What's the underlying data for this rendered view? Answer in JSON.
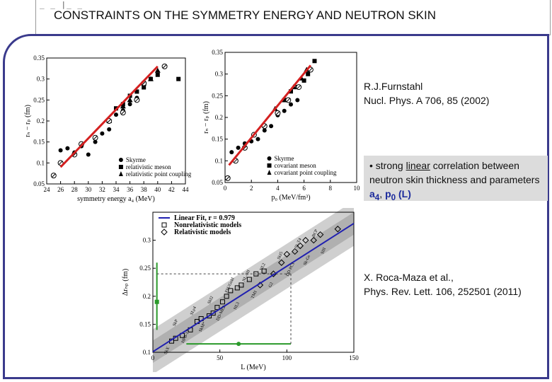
{
  "slide": {
    "title": "CONSTRAINTS ON THE SYMMETRY ENERGY AND NEUTRON SKIN",
    "corner_marks": "_ _ |_ _",
    "citation1": {
      "line1": "R.J.Furnstahl",
      "line2": "Nucl. Phys. A 706, 85 (2002)"
    },
    "note": {
      "bullet": "•",
      "pre": "strong ",
      "underlined": "linear",
      "post": " correlation between neutron skin thickness and parameters ",
      "a4": "a",
      "a4_sub": "4",
      "sep": ", ",
      "p0": "p",
      "p0_sub": "0",
      "L": " (L)"
    },
    "citation2": {
      "line1": "X. Roca-Maza et al.,",
      "line2": "Phys. Rev. Lett. 106, 252501 (2011)"
    }
  },
  "chart_data": [
    {
      "type": "scatter",
      "xlabel": "symmetry energy a₄ (MeV)",
      "ylabel": "rₙ − rₚ (fm)",
      "xlim": [
        24,
        44
      ],
      "ylim": [
        0.05,
        0.35
      ],
      "xticks": [
        "24",
        "26",
        "28",
        "30",
        "32",
        "34",
        "36",
        "38",
        "40",
        "42",
        "44"
      ],
      "yticks": [
        "0.05",
        "0.1",
        "0.15",
        "0.2",
        "0.25",
        "0.3",
        "0.35"
      ],
      "legend": [
        "Skyrme",
        "relativistic meson",
        "relativistic point coupling"
      ],
      "legend_position": "bottom-right",
      "fit_line": [
        [
          26,
          0.09
        ],
        [
          40,
          0.33
        ]
      ],
      "series": [
        {
          "name": "Skyrme",
          "marker": "circle",
          "points": [
            [
              26,
              0.13
            ],
            [
              27,
              0.135
            ],
            [
              28,
              0.125
            ],
            [
              29,
              0.14
            ],
            [
              30,
              0.12
            ],
            [
              31,
              0.15
            ],
            [
              32,
              0.17
            ],
            [
              33,
              0.18
            ],
            [
              34,
              0.215
            ],
            [
              35,
              0.225
            ],
            [
              36,
              0.24
            ],
            [
              37,
              0.255
            ]
          ]
        },
        {
          "name": "relativistic meson",
          "marker": "square",
          "points": [
            [
              34,
              0.23
            ],
            [
              35,
              0.24
            ],
            [
              36,
              0.26
            ],
            [
              37,
              0.27
            ],
            [
              38,
              0.28
            ],
            [
              39,
              0.3
            ],
            [
              40,
              0.31
            ],
            [
              43,
              0.3
            ]
          ]
        },
        {
          "name": "relativistic point coupling",
          "marker": "triangle",
          "points": [
            [
              33,
              0.2
            ],
            [
              35,
              0.235
            ],
            [
              36,
              0.25
            ],
            [
              38,
              0.29
            ],
            [
              39,
              0.3
            ],
            [
              40,
              0.32
            ]
          ]
        },
        {
          "name": "",
          "marker": "hatched",
          "points": [
            [
              25,
              0.07
            ],
            [
              26,
              0.1
            ],
            [
              28,
              0.12
            ],
            [
              29,
              0.145
            ],
            [
              31,
              0.16
            ],
            [
              33,
              0.2
            ],
            [
              35,
              0.22
            ],
            [
              37,
              0.25
            ],
            [
              38,
              0.29
            ],
            [
              41,
              0.33
            ]
          ]
        }
      ]
    },
    {
      "type": "scatter",
      "xlabel": "p₀ (MeV/fm³)",
      "ylabel": "rₙ − rₚ (fm)",
      "xlim": [
        0,
        10
      ],
      "ylim": [
        0.05,
        0.35
      ],
      "xticks": [
        "0",
        "2",
        "4",
        "6",
        "8",
        "10"
      ],
      "yticks": [
        "0.05",
        "0.1",
        "0.15",
        "0.2",
        "0.25",
        "0.3",
        "0.35"
      ],
      "legend": [
        "Skyrme",
        "covariant meson",
        "covariant point coupling"
      ],
      "legend_position": "bottom-right",
      "fit_line": [
        [
          0.3,
          0.09
        ],
        [
          6.5,
          0.32
        ]
      ],
      "series": [
        {
          "name": "Skyrme",
          "marker": "circle",
          "points": [
            [
              0.5,
              0.12
            ],
            [
              1,
              0.13
            ],
            [
              1.5,
              0.14
            ],
            [
              2,
              0.145
            ],
            [
              2.5,
              0.15
            ],
            [
              3,
              0.17
            ],
            [
              3.5,
              0.18
            ],
            [
              4,
              0.205
            ],
            [
              4.5,
              0.215
            ],
            [
              5,
              0.23
            ],
            [
              5.5,
              0.24
            ]
          ]
        },
        {
          "name": "covariant meson",
          "marker": "square",
          "points": [
            [
              4.5,
              0.24
            ],
            [
              5,
              0.26
            ],
            [
              5.5,
              0.27
            ],
            [
              6,
              0.285
            ],
            [
              6.3,
              0.3
            ],
            [
              6.8,
              0.33
            ]
          ]
        },
        {
          "name": "covariant point coupling",
          "marker": "triangle",
          "points": [
            [
              3.8,
              0.22
            ],
            [
              4.5,
              0.24
            ],
            [
              5.2,
              0.27
            ],
            [
              5.8,
              0.29
            ],
            [
              6.2,
              0.31
            ]
          ]
        },
        {
          "name": "",
          "marker": "hatched",
          "points": [
            [
              0.2,
              0.06
            ],
            [
              0.8,
              0.1
            ],
            [
              1.5,
              0.13
            ],
            [
              2.2,
              0.16
            ],
            [
              3,
              0.18
            ],
            [
              4,
              0.21
            ],
            [
              4.8,
              0.24
            ],
            [
              5.6,
              0.27
            ],
            [
              6.5,
              0.31
            ]
          ]
        }
      ]
    },
    {
      "type": "scatter",
      "xlabel": "L (MeV)",
      "ylabel": "Δrₙₚ (fm)",
      "xlim": [
        0,
        150
      ],
      "ylim": [
        0.1,
        0.35
      ],
      "xticks": [
        "0",
        "50",
        "100",
        "150"
      ],
      "yticks": [
        "0.1",
        "0.15",
        "0.2",
        "0.25",
        "0.3"
      ],
      "legend": [
        "Linear Fit, r = 0.979",
        "Nonrelativistic models",
        "Relativistic models"
      ],
      "legend_position": "top-left",
      "fit_line": [
        [
          0,
          0.101
        ],
        [
          150,
          0.33
        ]
      ],
      "band_halfwidth": 0.02,
      "constraint": {
        "x_center": 64,
        "x_range": [
          25,
          103
        ],
        "y_center": 0.19,
        "y_range": [
          0.14,
          0.26
        ]
      },
      "series": [
        {
          "name": "Nonrelativistic models",
          "marker": "square",
          "points": [
            [
              14,
              0.12
            ],
            [
              17,
              0.125
            ],
            [
              22,
              0.13
            ],
            [
              28,
              0.14
            ],
            [
              33,
              0.155
            ],
            [
              36,
              0.16
            ],
            [
              42,
              0.165
            ],
            [
              45,
              0.17
            ],
            [
              48,
              0.18
            ],
            [
              52,
              0.19
            ],
            [
              55,
              0.2
            ],
            [
              58,
              0.21
            ],
            [
              63,
              0.215
            ],
            [
              66,
              0.22
            ],
            [
              72,
              0.23
            ],
            [
              77,
              0.24
            ],
            [
              83,
              0.245
            ]
          ]
        },
        {
          "name": "Relativistic models",
          "marker": "diamond",
          "points": [
            [
              80,
              0.22
            ],
            [
              90,
              0.24
            ],
            [
              96,
              0.26
            ],
            [
              100,
              0.275
            ],
            [
              106,
              0.28
            ],
            [
              110,
              0.29
            ],
            [
              114,
              0.3
            ],
            [
              120,
              0.3
            ],
            [
              125,
              0.31
            ],
            [
              138,
              0.32
            ]
          ]
        }
      ],
      "annotations": [
        "SkX",
        "SkP",
        "HFB-17",
        "SLy4",
        "SkM*",
        "SkI2",
        "DD-ME2",
        "FSUGold",
        "NL3",
        "NL-SH",
        "TM1",
        "NL2",
        "G2",
        "SkI5",
        "DD-PC1",
        "Sk-T4",
        "Sk-Gs",
        "BCP",
        "SIII"
      ]
    }
  ]
}
